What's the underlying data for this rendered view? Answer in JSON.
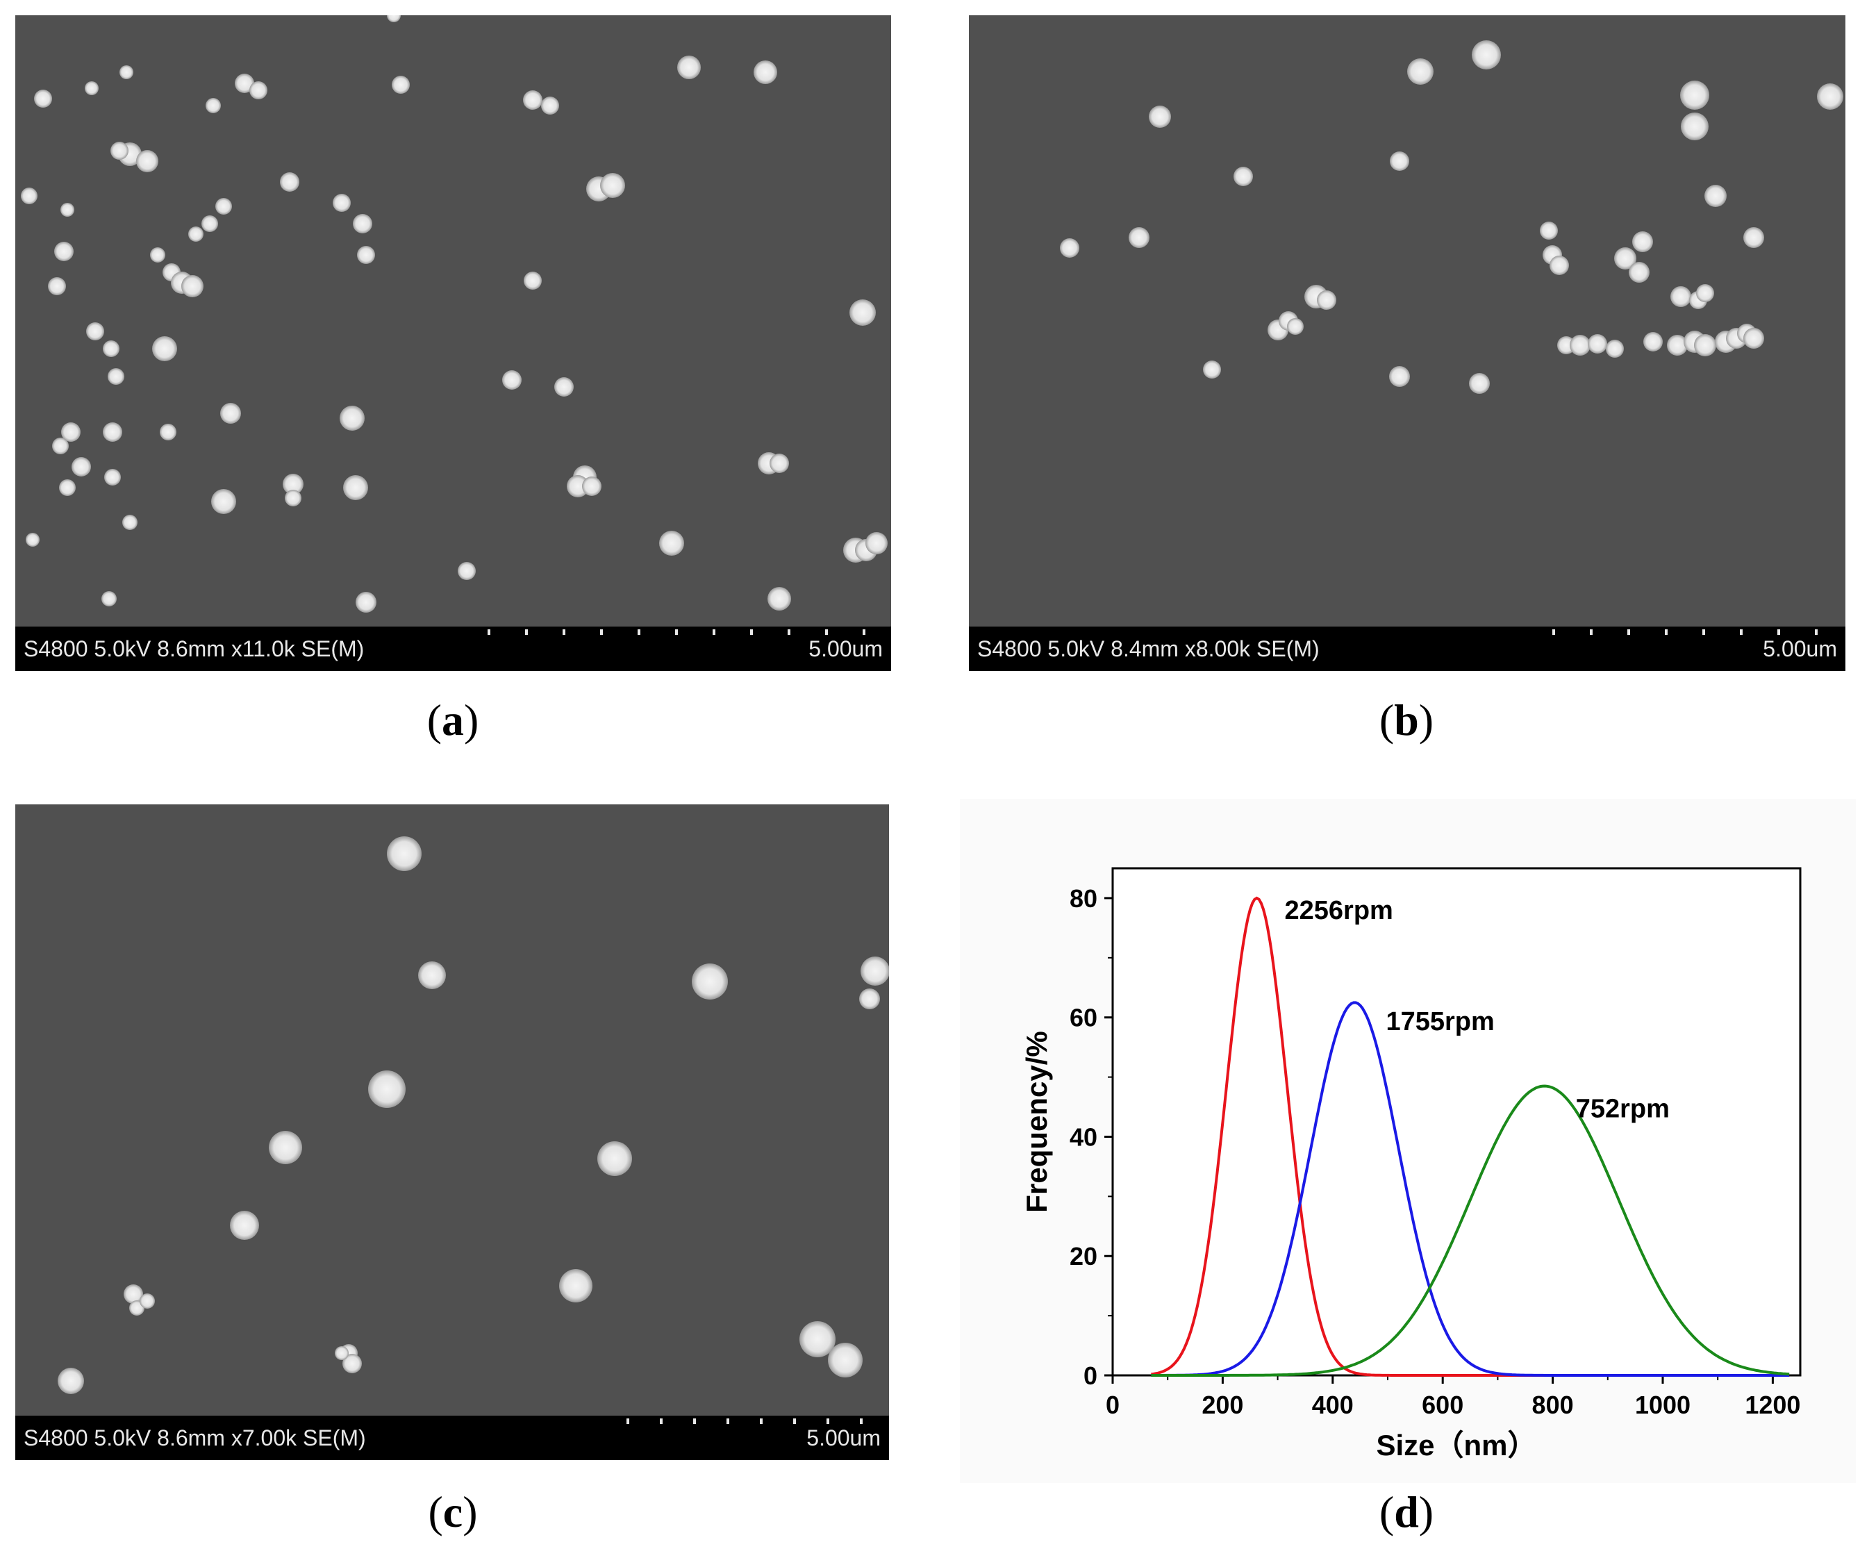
{
  "panels": [
    {
      "id": "a",
      "caption": "a",
      "info": "S4800 5.0kV 8.6mm x11.0k SE(M)",
      "scale": "5.00um"
    },
    {
      "id": "b",
      "caption": "b",
      "info": "S4800 5.0kV 8.4mm x8.00k SE(M)",
      "scale": "5.00um"
    },
    {
      "id": "c",
      "caption": "c",
      "info": "S4800 5.0kV 8.6mm x7.00k SE(M)",
      "scale": "5.00um"
    }
  ],
  "chart_caption": "d",
  "chart_data": {
    "type": "line",
    "xlabel": "Size（nm）",
    "ylabel": "Frequency/%",
    "xlim": [
      0,
      1250
    ],
    "ylim": [
      0,
      85
    ],
    "xticks": [
      0,
      200,
      400,
      600,
      800,
      1000,
      1200
    ],
    "yticks": [
      0,
      20,
      40,
      60,
      80
    ],
    "grid": false,
    "series": [
      {
        "name": "2256rpm",
        "color": "#e8141c",
        "peak_x": 262,
        "peak_y": 80,
        "sigma": 55
      },
      {
        "name": "1755rpm",
        "color": "#1a1ae6",
        "peak_x": 440,
        "peak_y": 62.5,
        "sigma": 80
      },
      {
        "name": "752rpm",
        "color": "#1a8a1a",
        "peak_x": 785,
        "peak_y": 48.5,
        "sigma": 135
      }
    ]
  }
}
